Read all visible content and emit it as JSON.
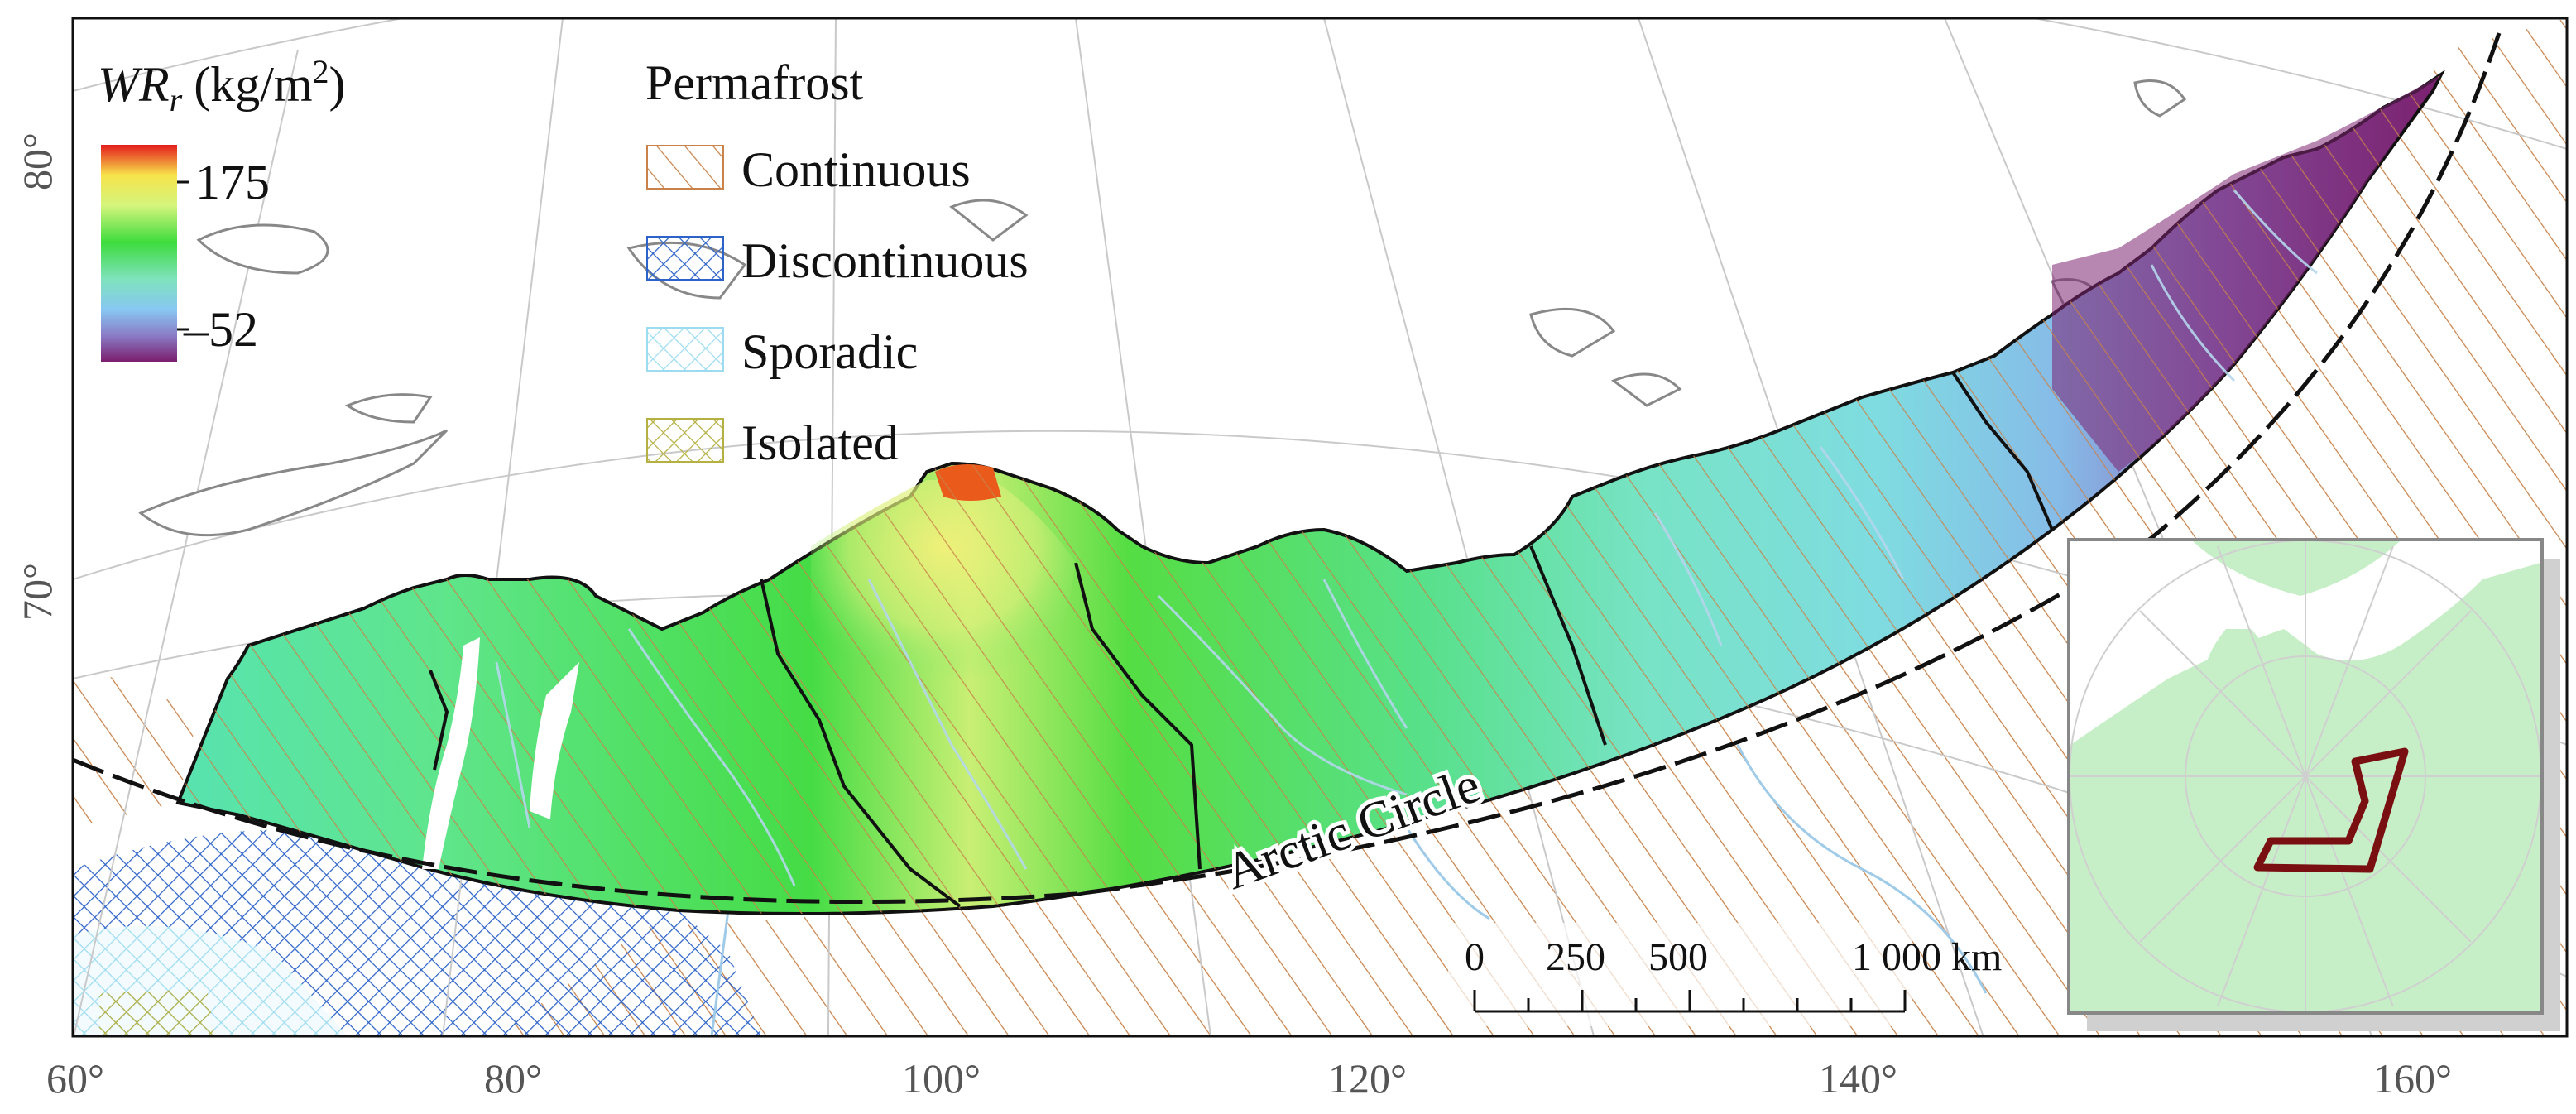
{
  "colorbar": {
    "title_italic": "WR",
    "title_subscript": "r",
    "title_units": "(kg/m",
    "title_superscript": "2",
    "title_close": ")",
    "max_label": "175",
    "min_label": "–52",
    "max_value": 175,
    "min_value": -52,
    "colors": [
      "#d7191c",
      "#f5e24a",
      "#d8f57a",
      "#3fdc3f",
      "#7ee2b8",
      "#86c9f0",
      "#8b7cc7",
      "#7a1f6e"
    ]
  },
  "legend": {
    "title": "Permafrost",
    "items": [
      {
        "label": "Continuous",
        "pattern": "diagonal",
        "color": "#c8824a"
      },
      {
        "label": "Discontinuous",
        "pattern": "crosshatch",
        "color": "#2d63c8"
      },
      {
        "label": "Sporadic",
        "pattern": "crosshatch",
        "color": "#9ddcf0"
      },
      {
        "label": "Isolated",
        "pattern": "crosshatch",
        "color": "#b5b042"
      }
    ]
  },
  "axes": {
    "longitudes": [
      "60°",
      "80°",
      "100°",
      "120°",
      "140°",
      "160°"
    ],
    "latitudes": [
      "80°",
      "70°"
    ]
  },
  "annotations": {
    "arctic_circle": "Arctic Circle"
  },
  "scale_bar": {
    "labels": [
      "0",
      "250",
      "500",
      "1 000 km"
    ]
  },
  "colors": {
    "land_boundary": "#888888",
    "rivers": "#9fcbe8",
    "region_outline": "#111111",
    "inset_frame": "#888888",
    "inset_land": "#c7efc7",
    "inset_highlight": "#7a0f12"
  }
}
